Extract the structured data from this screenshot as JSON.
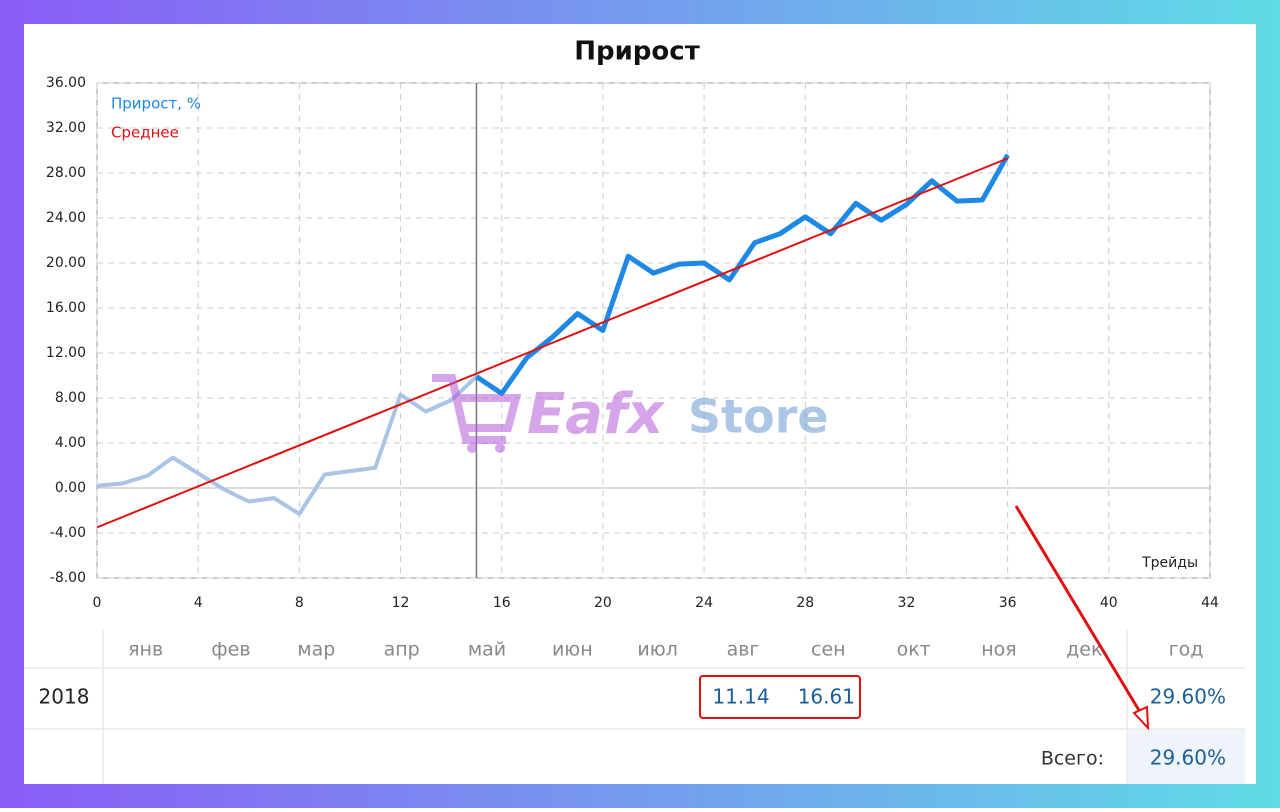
{
  "chart_data": {
    "type": "line",
    "title": "Прирост",
    "x_label": "Трейды",
    "x": [
      0,
      1,
      2,
      3,
      4,
      5,
      6,
      7,
      8,
      9,
      10,
      11,
      12,
      13,
      14,
      15,
      16,
      17,
      18,
      19,
      20,
      21,
      22,
      23,
      24,
      25,
      26,
      27,
      28,
      29,
      30,
      31,
      32,
      33,
      34,
      35,
      36
    ],
    "series": [
      {
        "name": "Прирост, %",
        "color": "#1e88e5",
        "faded_color": "#a9c4e4",
        "values": [
          0.2,
          0.4,
          1.1,
          2.7,
          1.3,
          -0.1,
          -1.2,
          -0.9,
          -2.3,
          1.2,
          1.5,
          1.8,
          8.3,
          6.8,
          7.8,
          9.9,
          8.4,
          11.6,
          13.4,
          15.5,
          14.0,
          20.6,
          19.1,
          19.9,
          20.0,
          18.5,
          21.8,
          22.6,
          24.1,
          22.6,
          25.3,
          23.8,
          25.2,
          27.3,
          25.5,
          25.6,
          29.6
        ]
      },
      {
        "name": "Среднее",
        "color": "#e01010",
        "x": [
          0,
          36
        ],
        "values": [
          -3.5,
          29.3
        ]
      }
    ],
    "highlight_from": 15,
    "xlim": [
      0,
      44
    ],
    "xticks": [
      0,
      4,
      8,
      12,
      16,
      20,
      24,
      28,
      32,
      36,
      40,
      44
    ],
    "ylim": [
      -8,
      36
    ],
    "yticks": [
      {
        "value": -8,
        "label": "-8.00"
      },
      {
        "value": -4,
        "label": "-4.00"
      },
      {
        "value": 0,
        "label": "0.00"
      },
      {
        "value": 4,
        "label": "4.00"
      },
      {
        "value": 8,
        "label": "8.00"
      },
      {
        "value": 12,
        "label": "12.00"
      },
      {
        "value": 16,
        "label": "16.00"
      },
      {
        "value": 20,
        "label": "20.00"
      },
      {
        "value": 24,
        "label": "24.00"
      },
      {
        "value": 28,
        "label": "28.00"
      },
      {
        "value": 32,
        "label": "32.00"
      },
      {
        "value": 36,
        "label": "36.00"
      }
    ],
    "grid": true,
    "legend": "top-left"
  },
  "watermark": {
    "brand": "Eafx",
    "suffix": "Store"
  },
  "table": {
    "months": [
      "янв",
      "фев",
      "мар",
      "апр",
      "май",
      "июн",
      "июл",
      "авг",
      "сен",
      "окт",
      "ноя",
      "дек"
    ],
    "year_header": "год",
    "rows": [
      {
        "year": "2018",
        "cells": [
          null,
          null,
          null,
          null,
          null,
          null,
          null,
          11.14,
          16.61,
          null,
          null,
          null
        ],
        "total": "29.60%"
      }
    ],
    "footer_label": "Всего:",
    "footer_value": "29.60%"
  }
}
